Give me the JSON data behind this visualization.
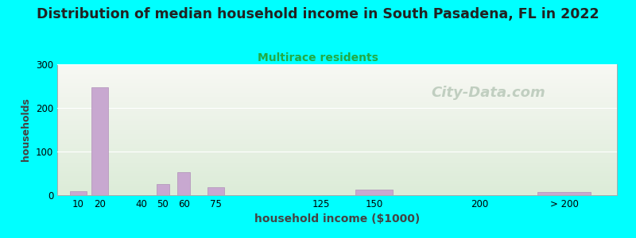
{
  "title": "Distribution of median household income in South Pasadena, FL in 2022",
  "subtitle": "Multirace residents",
  "xlabel": "household income ($1000)",
  "ylabel": "households",
  "background_color": "#00FFFF",
  "plot_bg_top": "#f8f8f4",
  "plot_bg_bottom": "#dcecd8",
  "bar_color": "#c8a8d0",
  "bar_edge_color": "#b090b8",
  "title_fontsize": 12.5,
  "subtitle_fontsize": 10,
  "subtitle_color": "#22aa44",
  "xlabel_fontsize": 10,
  "ylabel_fontsize": 9,
  "tick_labels": [
    "10",
    "20",
    "40",
    "50",
    "60",
    "75",
    "125",
    "150",
    "200",
    "> 200"
  ],
  "tick_positions": [
    10,
    20,
    40,
    50,
    60,
    75,
    125,
    150,
    200,
    240
  ],
  "bar_centers": [
    10,
    20,
    40,
    50,
    60,
    75,
    125,
    150,
    200,
    240
  ],
  "bar_widths": [
    8,
    8,
    6,
    6,
    6,
    8,
    8,
    18,
    6,
    25
  ],
  "values": [
    10,
    247,
    0,
    25,
    52,
    18,
    0,
    13,
    0,
    8
  ],
  "xlim": [
    0,
    265
  ],
  "ylim": [
    0,
    300
  ],
  "yticks": [
    0,
    100,
    200,
    300
  ],
  "watermark_text": "City-Data.com",
  "watermark_color": "#b8c8b8",
  "watermark_fontsize": 13
}
